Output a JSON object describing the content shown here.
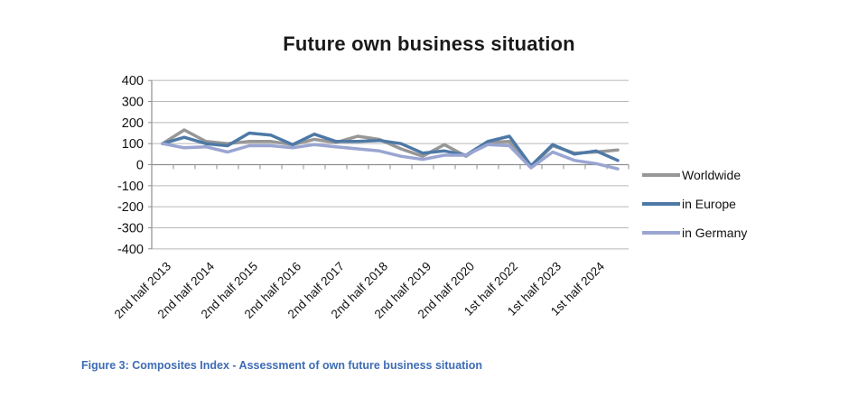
{
  "figure": {
    "caption": "Figure 3: Composites Index - Assessment of own future business situation",
    "caption_color": "#3E6CB5"
  },
  "chart_data": {
    "type": "line",
    "title": "Future own business situation",
    "grid": true,
    "legend_position": "right",
    "x_axis": {
      "n_points": 22,
      "label_every_n_points": 2,
      "visible_labels": [
        "2nd  half 2013",
        "2nd half 2014",
        "2nd half 2015",
        "2nd half 2016",
        "2nd half 2017",
        "2nd half 2018",
        "2nd half 2019",
        "2nd half 2020",
        "1st half 2022",
        "1st half 2023",
        "1st half 2024"
      ]
    },
    "y_axis": {
      "min": -400,
      "max": 400,
      "ticks": [
        400,
        300,
        200,
        100,
        0,
        -100,
        -200,
        -300,
        -400
      ]
    },
    "series": [
      {
        "name": "Worldwide",
        "color": "#979797",
        "values": [
          100,
          165,
          110,
          100,
          110,
          110,
          95,
          120,
          105,
          135,
          120,
          75,
          40,
          95,
          40,
          105,
          110,
          -10,
          90,
          55,
          60,
          70
        ]
      },
      {
        "name": "in Europe",
        "color": "#4E79A6",
        "values": [
          100,
          130,
          100,
          90,
          150,
          140,
          95,
          145,
          110,
          110,
          115,
          100,
          55,
          65,
          45,
          110,
          135,
          -5,
          95,
          50,
          65,
          20
        ]
      },
      {
        "name": "in Germany",
        "color": "#9AA5D2",
        "values": [
          100,
          80,
          85,
          60,
          90,
          90,
          80,
          95,
          85,
          75,
          65,
          40,
          25,
          45,
          45,
          95,
          90,
          -15,
          60,
          20,
          5,
          -20
        ]
      }
    ]
  }
}
